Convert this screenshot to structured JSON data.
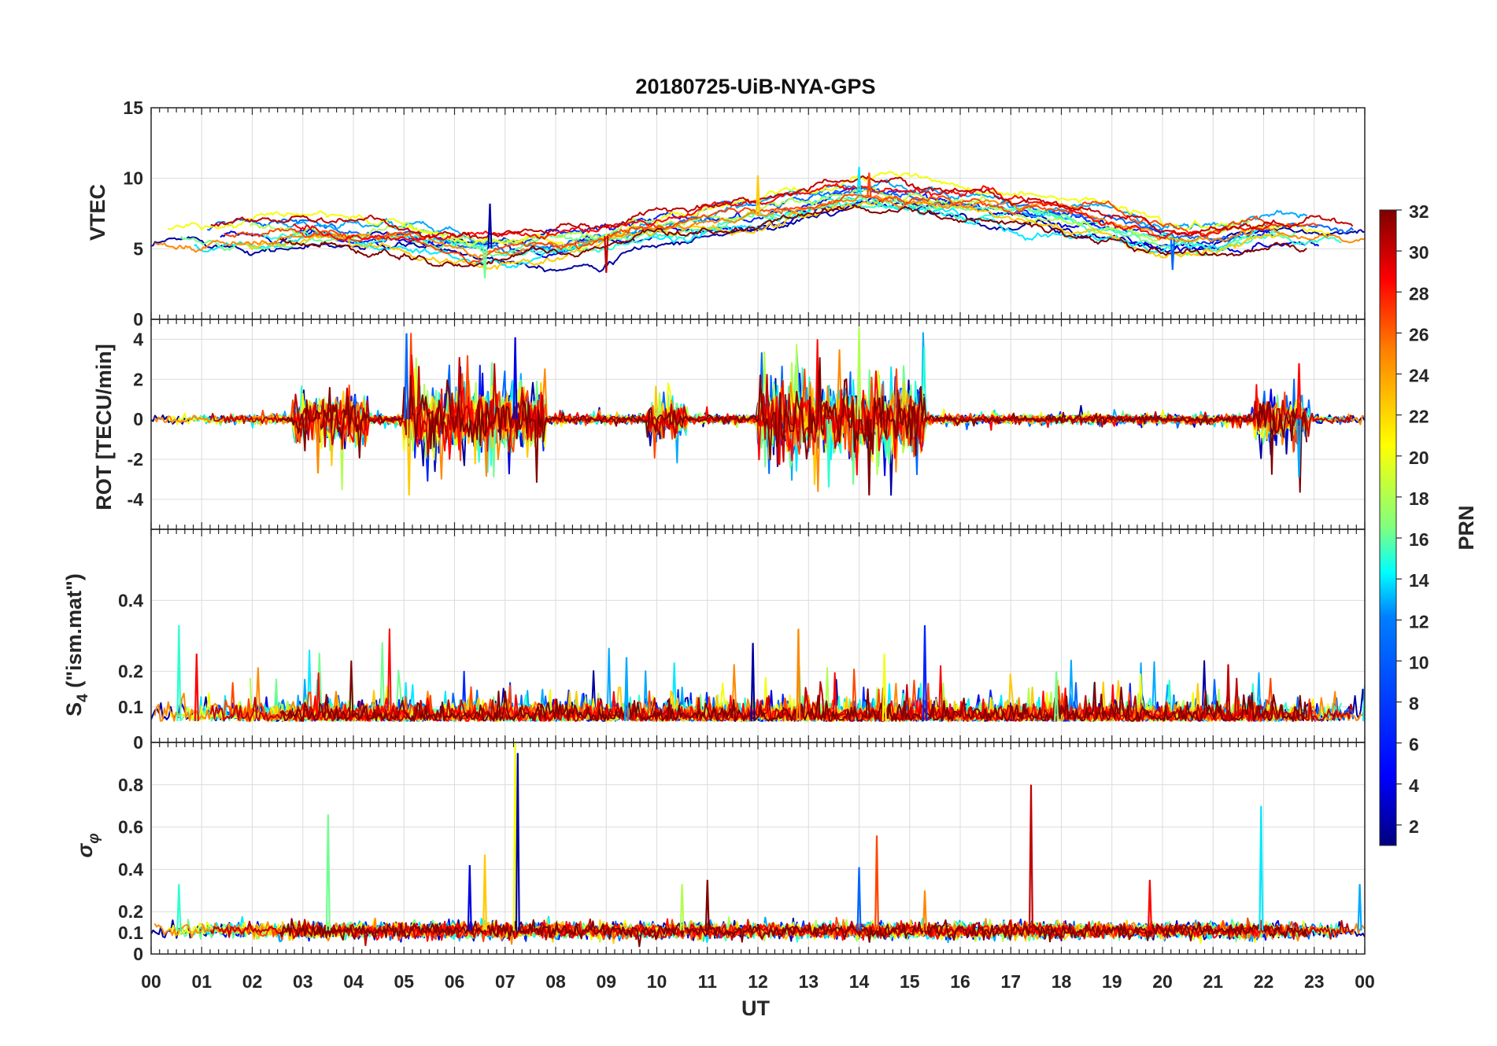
{
  "chart_data": {
    "type": "line",
    "title": "20180725-UiB-NYA-GPS",
    "xlabel": "UT",
    "x_tick_labels": [
      "00",
      "01",
      "02",
      "03",
      "04",
      "05",
      "06",
      "07",
      "08",
      "09",
      "10",
      "11",
      "12",
      "13",
      "14",
      "15",
      "16",
      "17",
      "18",
      "19",
      "20",
      "21",
      "22",
      "23",
      "00"
    ],
    "xlim": [
      0,
      24
    ],
    "panels": [
      {
        "id": "vtec",
        "ylabel": "VTEC",
        "ylim": [
          0,
          15
        ],
        "yticks": [
          0,
          5,
          10,
          15
        ],
        "ytick_labels": [
          "0",
          "5",
          "10",
          "15"
        ],
        "baseline": 6.2,
        "noise": 0.35,
        "trend_points": [
          [
            0,
            5.8
          ],
          [
            3,
            6.3
          ],
          [
            5,
            5.8
          ],
          [
            6.5,
            5.0
          ],
          [
            8,
            5.2
          ],
          [
            10,
            6.6
          ],
          [
            12,
            7.4
          ],
          [
            14,
            8.8
          ],
          [
            15,
            8.5
          ],
          [
            17,
            7.5
          ],
          [
            19,
            6.8
          ],
          [
            20,
            5.7
          ],
          [
            21,
            5.5
          ],
          [
            22,
            6.2
          ],
          [
            24,
            6.0
          ]
        ],
        "spikes": [
          [
            6.7,
            8.2
          ],
          [
            6.6,
            2.9
          ],
          [
            9.0,
            3.3
          ],
          [
            14.0,
            10.8
          ],
          [
            14.2,
            10.4
          ],
          [
            20.2,
            3.5
          ],
          [
            12.0,
            10.2
          ]
        ]
      },
      {
        "id": "rot",
        "ylabel": "ROT [TECU/min]",
        "ylim": [
          -5.5,
          5
        ],
        "yticks": [
          -4,
          -2,
          0,
          2,
          4
        ],
        "ytick_labels": [
          "-4",
          "-2",
          "0",
          "2",
          "4"
        ],
        "baseline": 0,
        "noise": 0.15,
        "active_windows": [
          [
            2.8,
            4.3,
            1.6
          ],
          [
            5.0,
            7.8,
            2.2
          ],
          [
            9.8,
            10.6,
            1.2
          ],
          [
            12.0,
            15.3,
            2.6
          ],
          [
            21.8,
            22.9,
            1.6
          ]
        ],
        "spikes": [
          [
            5.05,
            4.3
          ],
          [
            5.1,
            -3.8
          ],
          [
            7.2,
            4.1
          ],
          [
            14.0,
            4.6
          ],
          [
            14.2,
            -3.8
          ],
          [
            13.4,
            -3.4
          ],
          [
            22.7,
            2.8
          ],
          [
            22.7,
            -2.9
          ],
          [
            3.3,
            -2.7
          ]
        ]
      },
      {
        "id": "s4",
        "ylabel": "S4 (\"ism.mat\")",
        "ylabel_main": "S",
        "ylabel_sub": "4",
        "ylabel_rest": " (\"ism.mat\")",
        "ylim": [
          0,
          0.6
        ],
        "yticks": [
          0,
          0.1,
          0.2,
          0.4
        ],
        "ytick_labels": [
          "0",
          "0.1",
          "0.2",
          "0.4"
        ],
        "baseline": 0.06,
        "noise": 0.03,
        "spikes": [
          [
            0.55,
            0.33
          ],
          [
            0.9,
            0.25
          ],
          [
            9.4,
            0.24
          ],
          [
            12.8,
            0.32
          ],
          [
            15.3,
            0.33
          ],
          [
            14.5,
            0.25
          ],
          [
            11.9,
            0.28
          ],
          [
            17.9,
            0.2
          ],
          [
            21.3,
            0.22
          ],
          [
            24.0,
            0.16
          ]
        ]
      },
      {
        "id": "sigma_phi",
        "ylabel": "σφ",
        "ylabel_main": "σ",
        "ylabel_sub": "φ",
        "ylim": [
          0,
          1
        ],
        "yticks": [
          0,
          0.1,
          0.2,
          0.4,
          0.6,
          0.8
        ],
        "ytick_labels": [
          "0",
          "0.1",
          "0.2",
          "0.4",
          "0.6",
          "0.8"
        ],
        "baseline": 0.11,
        "noise": 0.03,
        "spikes": [
          [
            7.2,
            1.0
          ],
          [
            7.25,
            0.95
          ],
          [
            3.5,
            0.66
          ],
          [
            17.4,
            0.8
          ],
          [
            21.95,
            0.7
          ],
          [
            14.35,
            0.56
          ],
          [
            14.0,
            0.41
          ],
          [
            6.6,
            0.47
          ],
          [
            6.3,
            0.42
          ],
          [
            10.5,
            0.33
          ],
          [
            11.0,
            0.35
          ],
          [
            0.55,
            0.33
          ],
          [
            19.75,
            0.35
          ],
          [
            23.9,
            0.33
          ],
          [
            15.3,
            0.3
          ]
        ]
      }
    ],
    "colorbar": {
      "label": "PRN",
      "range": [
        1,
        32
      ],
      "tick_labels": [
        "2",
        "4",
        "6",
        "8",
        "10",
        "12",
        "14",
        "16",
        "18",
        "20",
        "22",
        "24",
        "26",
        "28",
        "30",
        "32"
      ],
      "colormap": "jet"
    },
    "series_prn": [
      2,
      4,
      6,
      8,
      10,
      12,
      14,
      16,
      18,
      20,
      22,
      24,
      26,
      28,
      30,
      32
    ]
  },
  "colors": {
    "jet_stops": [
      "#00007f",
      "#0000ff",
      "#007fff",
      "#00ffff",
      "#7fff7f",
      "#ffff00",
      "#ff7f00",
      "#ff0000",
      "#7f0000"
    ]
  }
}
